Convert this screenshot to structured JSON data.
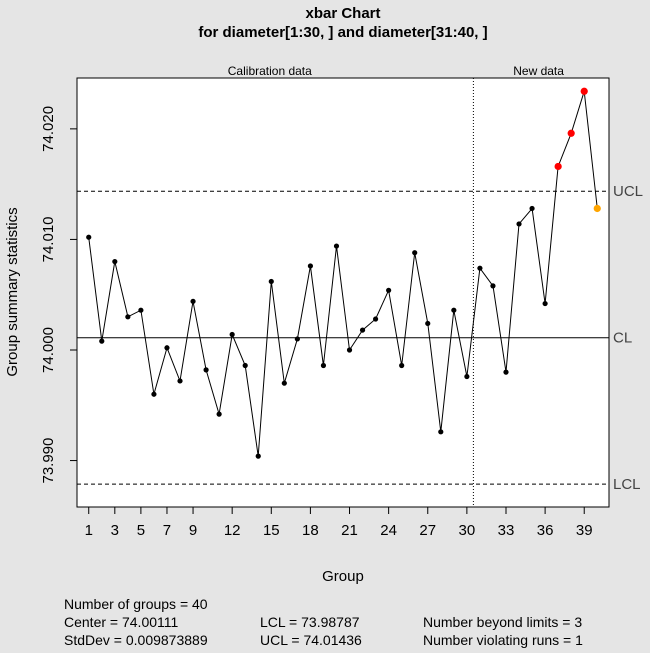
{
  "chart_data": {
    "type": "line",
    "title": "xbar Chart",
    "subtitle": "for diameter[1:30, ] and diameter[31:40, ]",
    "xlabel": "Group",
    "ylabel": "Group summary statistics",
    "xlim": [
      0.1,
      40.9
    ],
    "ylim": [
      73.9858,
      74.0246
    ],
    "x_ticks": [
      1,
      3,
      5,
      7,
      9,
      12,
      15,
      18,
      21,
      24,
      27,
      30,
      33,
      36,
      39
    ],
    "y_ticks": [
      73.99,
      74.0,
      74.01,
      74.02
    ],
    "y_tick_labels": [
      "73.990",
      "74.000",
      "74.010",
      "74.020"
    ],
    "sections": [
      {
        "label": "Calibration data",
        "from": 1,
        "to": 30
      },
      {
        "label": "New data",
        "from": 31,
        "to": 40
      }
    ],
    "divider_x": 30.5,
    "lines": [
      {
        "label": "UCL",
        "value": 74.01436,
        "style": "dashed"
      },
      {
        "label": "CL",
        "value": 74.00111,
        "style": "solid"
      },
      {
        "label": "LCL",
        "value": 73.98787,
        "style": "dashed"
      }
    ],
    "series": [
      {
        "x": [
          1,
          2,
          3,
          4,
          5,
          6,
          7,
          8,
          9,
          10,
          11,
          12,
          13,
          14,
          15,
          16,
          17,
          18,
          19,
          20,
          21,
          22,
          23,
          24,
          25,
          26,
          27,
          28,
          29,
          30,
          31,
          32,
          33,
          34,
          35,
          36,
          37,
          38,
          39,
          40
        ],
        "values": [
          74.0102,
          74.0008,
          74.008,
          74.003,
          74.0036,
          73.996,
          74.0002,
          73.9972,
          74.0044,
          73.9982,
          73.9942,
          74.0014,
          73.9986,
          73.9904,
          74.0062,
          73.997,
          74.001,
          74.0076,
          73.9986,
          74.0094,
          74.0,
          74.0018,
          74.0028,
          74.0054,
          73.9986,
          74.0088,
          74.0024,
          73.9926,
          74.0036,
          73.9976,
          74.0074,
          74.0058,
          73.998,
          74.0114,
          74.0128,
          74.0042,
          74.0166,
          74.0196,
          74.0234,
          74.0128
        ],
        "point_status": [
          "normal",
          "normal",
          "normal",
          "normal",
          "normal",
          "normal",
          "normal",
          "normal",
          "normal",
          "normal",
          "normal",
          "normal",
          "normal",
          "normal",
          "normal",
          "normal",
          "normal",
          "normal",
          "normal",
          "normal",
          "normal",
          "normal",
          "normal",
          "normal",
          "normal",
          "normal",
          "normal",
          "normal",
          "normal",
          "normal",
          "normal",
          "normal",
          "normal",
          "normal",
          "normal",
          "normal",
          "beyond",
          "beyond",
          "beyond",
          "violating"
        ]
      }
    ],
    "colors": {
      "normal": "#000000",
      "beyond": "#ff0000",
      "violating": "#ffa500",
      "background": "#e5e5e5",
      "panel": "#ffffff"
    }
  },
  "stats": {
    "groups": "Number of groups = 40",
    "center": "Center = 74.00111",
    "stddev": "StdDev = 0.009873889",
    "lcl": "LCL = 73.98787",
    "ucl": "UCL = 74.01436",
    "beyond": "Number beyond limits = 3",
    "violating": "Number violating runs = 1"
  }
}
